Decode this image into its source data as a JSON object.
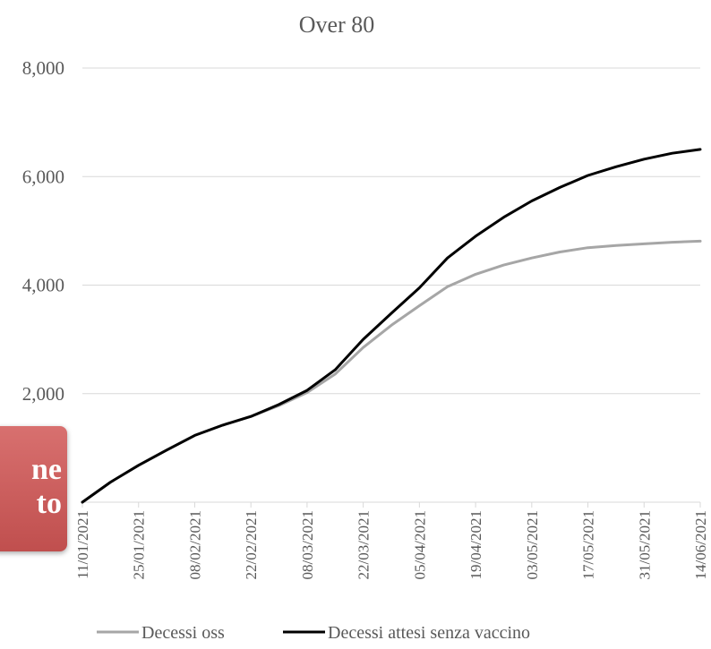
{
  "chart_data": {
    "type": "line",
    "title": "Over 80",
    "xlabel": "",
    "ylabel": "",
    "ylim": [
      0,
      8000
    ],
    "yticks": [
      "0",
      "2,000",
      "4,000",
      "6,000",
      "8,000"
    ],
    "xlim": [
      "11/01/2021",
      "14/06/2021"
    ],
    "xticks": [
      "11/01/2021",
      "25/01/2021",
      "08/02/2021",
      "22/02/2021",
      "08/03/2021",
      "22/03/2021",
      "05/04/2021",
      "19/04/2021",
      "03/05/2021",
      "17/05/2021",
      "31/05/2021",
      "14/06/2021"
    ],
    "grid": "horizontal",
    "legend_position": "bottom",
    "series": [
      {
        "name": "Decessi oss",
        "color": "#a6a6a6",
        "x": [
          "11/01/2021",
          "18/01/2021",
          "25/01/2021",
          "01/02/2021",
          "08/02/2021",
          "15/02/2021",
          "22/02/2021",
          "01/03/2021",
          "08/03/2021",
          "15/03/2021",
          "22/03/2021",
          "29/03/2021",
          "05/04/2021",
          "12/04/2021",
          "19/04/2021",
          "26/04/2021",
          "03/05/2021",
          "10/05/2021",
          "17/05/2021",
          "24/05/2021",
          "31/05/2021",
          "07/06/2021",
          "14/06/2021"
        ],
        "values": [
          0,
          370,
          680,
          960,
          1230,
          1420,
          1580,
          1780,
          2020,
          2360,
          2850,
          3260,
          3620,
          3970,
          4200,
          4370,
          4500,
          4610,
          4690,
          4730,
          4760,
          4790,
          4810
        ]
      },
      {
        "name": "Decessi attesi senza vaccino",
        "color": "#000000",
        "x": [
          "11/01/2021",
          "18/01/2021",
          "25/01/2021",
          "01/02/2021",
          "08/02/2021",
          "15/02/2021",
          "22/02/2021",
          "01/03/2021",
          "08/03/2021",
          "15/03/2021",
          "22/03/2021",
          "29/03/2021",
          "05/04/2021",
          "12/04/2021",
          "19/04/2021",
          "26/04/2021",
          "03/05/2021",
          "10/05/2021",
          "17/05/2021",
          "24/05/2021",
          "31/05/2021",
          "07/06/2021",
          "14/06/2021"
        ],
        "values": [
          0,
          370,
          680,
          960,
          1230,
          1420,
          1580,
          1800,
          2060,
          2440,
          3000,
          3480,
          3950,
          4500,
          4900,
          5250,
          5550,
          5800,
          6020,
          6180,
          6320,
          6430,
          6500
        ]
      }
    ]
  },
  "overlay": {
    "lines": [
      "ne",
      "to"
    ],
    "color": "#c9605f"
  }
}
